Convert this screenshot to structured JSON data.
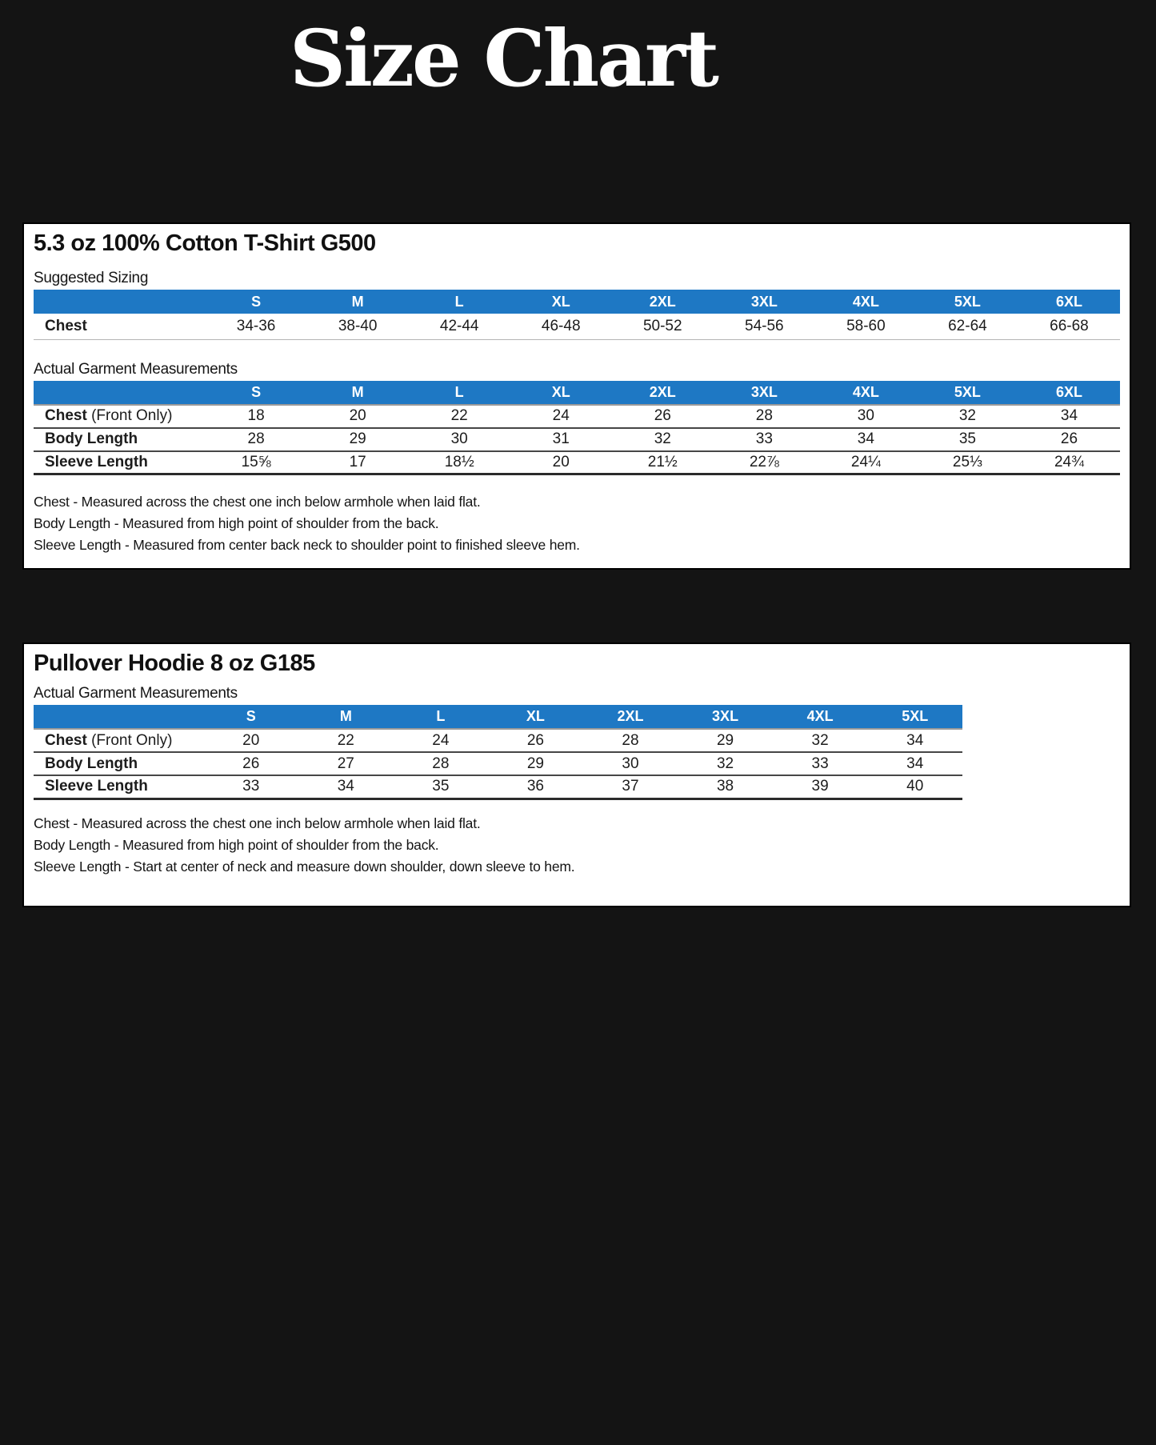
{
  "page": {
    "title": "Size Chart",
    "colors": {
      "background": "#141414",
      "panel": "#ffffff",
      "header_blue": "#1e78c4",
      "header_text": "#ffffff",
      "body_text": "#1a1a1a"
    }
  },
  "tshirt": {
    "title": "5.3 oz 100% Cotton T-Shirt G500",
    "suggested_label": "Suggested Sizing",
    "actual_label": "Actual Garment Measurements",
    "sizes": [
      "S",
      "M",
      "L",
      "XL",
      "2XL",
      "3XL",
      "4XL",
      "5XL",
      "6XL"
    ],
    "suggested_rows": [
      {
        "label": "Chest",
        "label_suffix": "",
        "values": [
          "34-36",
          "38-40",
          "42-44",
          "46-48",
          "50-52",
          "54-56",
          "58-60",
          "62-64",
          "66-68"
        ]
      }
    ],
    "actual_rows": [
      {
        "label": "Chest",
        "label_suffix": " (Front Only)",
        "values": [
          "18",
          "20",
          "22",
          "24",
          "26",
          "28",
          "30",
          "32",
          "34"
        ]
      },
      {
        "label": "Body Length",
        "label_suffix": "",
        "values": [
          "28",
          "29",
          "30",
          "31",
          "32",
          "33",
          "34",
          "35",
          "26"
        ]
      },
      {
        "label": "Sleeve Length",
        "label_suffix": "",
        "values": [
          "15⅝",
          "17",
          "18½",
          "20",
          "21½",
          "22⅞",
          "24¼",
          "25⅓",
          "24¾"
        ]
      }
    ],
    "footnotes": [
      "Chest - Measured across the chest one inch below armhole when laid flat.",
      "Body Length - Measured from high point of shoulder from the back.",
      "Sleeve Length - Measured from center back neck to shoulder point to finished sleeve hem."
    ]
  },
  "hoodie": {
    "title": "Pullover Hoodie 8 oz G185",
    "actual_label": "Actual Garment Measurements",
    "sizes": [
      "S",
      "M",
      "L",
      "XL",
      "2XL",
      "3XL",
      "4XL",
      "5XL"
    ],
    "rows": [
      {
        "label": "Chest",
        "label_suffix": " (Front Only)",
        "values": [
          "20",
          "22",
          "24",
          "26",
          "28",
          "29",
          "32",
          "34"
        ]
      },
      {
        "label": "Body Length",
        "label_suffix": "",
        "values": [
          "26",
          "27",
          "28",
          "29",
          "30",
          "32",
          "33",
          "34"
        ]
      },
      {
        "label": "Sleeve Length",
        "label_suffix": "",
        "values": [
          "33",
          "34",
          "35",
          "36",
          "37",
          "38",
          "39",
          "40"
        ]
      }
    ],
    "footnotes": [
      "Chest - Measured across the chest one inch below armhole when laid flat.",
      "Body Length - Measured from high point of shoulder from the back.",
      "Sleeve Length - Start at center of neck and measure down shoulder, down sleeve to hem."
    ]
  }
}
